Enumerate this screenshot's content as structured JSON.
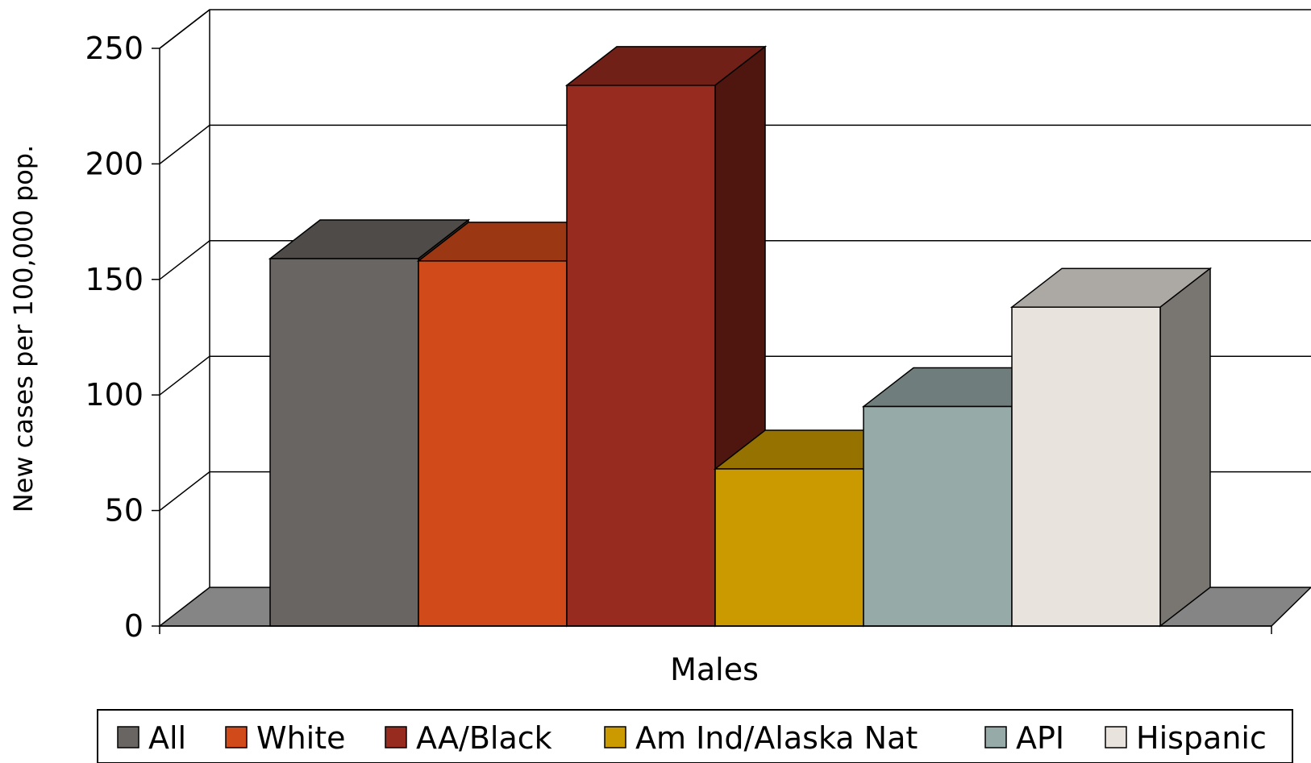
{
  "chart_data": {
    "type": "bar",
    "title": "",
    "xlabel": "Males",
    "ylabel": "New cases per 100,000 pop.",
    "ylim": [
      0,
      250
    ],
    "yticks": [
      "0",
      "50",
      "100",
      "150",
      "200",
      "250"
    ],
    "categories": [
      "Males"
    ],
    "series": [
      {
        "name": "All",
        "values": [
          159
        ],
        "color": "#696563"
      },
      {
        "name": "White",
        "values": [
          158
        ],
        "color": "#d14a19"
      },
      {
        "name": "AA/Black",
        "values": [
          234
        ],
        "color": "#972b1f"
      },
      {
        "name": "Am Ind/Alaska Nat",
        "values": [
          68
        ],
        "color": "#cb9a00"
      },
      {
        "name": "API",
        "values": [
          95
        ],
        "color": "#96aaa8"
      },
      {
        "name": "Hispanic",
        "values": [
          138
        ],
        "color": "#e8e3dc"
      }
    ],
    "grid": true,
    "three_d": true,
    "legend_position": "bottom"
  }
}
